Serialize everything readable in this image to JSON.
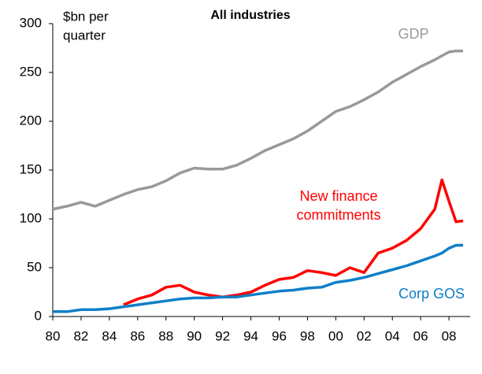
{
  "chart_data": {
    "type": "line",
    "title": "All industries",
    "ylabel": [
      "$bn per",
      "quarter"
    ],
    "x": [
      1980,
      1981,
      1982,
      1983,
      1984,
      1985,
      1986,
      1987,
      1988,
      1989,
      1990,
      1991,
      1992,
      1993,
      1994,
      1995,
      1996,
      1997,
      1998,
      1999,
      2000,
      2001,
      2002,
      2003,
      2004,
      2005,
      2006,
      2007,
      2007.5,
      2008,
      2008.5,
      2009
    ],
    "series": [
      {
        "name": [
          "GDP"
        ],
        "color": "#999999",
        "values": [
          110,
          113,
          117,
          113,
          119,
          125,
          130,
          133,
          139,
          147,
          152,
          151,
          151,
          155,
          162,
          170,
          176,
          182,
          190,
          200,
          210,
          215,
          222,
          230,
          240,
          248,
          256,
          263,
          267,
          271,
          272,
          272
        ]
      },
      {
        "name": [
          "New finance",
          "commitments"
        ],
        "color": "#ff0000",
        "values": [
          null,
          null,
          null,
          null,
          null,
          12,
          18,
          22,
          30,
          32,
          25,
          22,
          20,
          22,
          25,
          32,
          38,
          40,
          47,
          45,
          42,
          50,
          45,
          65,
          70,
          78,
          90,
          110,
          140,
          118,
          97,
          98
        ]
      },
      {
        "name": [
          "Corp GOS"
        ],
        "color": "#0f7fc8",
        "values": [
          5,
          5,
          7,
          7,
          8,
          10,
          12,
          14,
          16,
          18,
          19,
          19,
          20,
          20,
          22,
          24,
          26,
          27,
          29,
          30,
          35,
          37,
          40,
          44,
          48,
          52,
          57,
          62,
          65,
          70,
          73,
          73
        ]
      }
    ],
    "xlim": [
      1980,
      2009.5
    ],
    "xticks": [
      {
        "value": 1980,
        "label": "80"
      },
      {
        "value": 1982,
        "label": "82"
      },
      {
        "value": 1984,
        "label": "84"
      },
      {
        "value": 1986,
        "label": "86"
      },
      {
        "value": 1988,
        "label": "88"
      },
      {
        "value": 1990,
        "label": "90"
      },
      {
        "value": 1992,
        "label": "92"
      },
      {
        "value": 1994,
        "label": "94"
      },
      {
        "value": 1996,
        "label": "96"
      },
      {
        "value": 1998,
        "label": "98"
      },
      {
        "value": 2000,
        "label": "00"
      },
      {
        "value": 2002,
        "label": "02"
      },
      {
        "value": 2004,
        "label": "04"
      },
      {
        "value": 2006,
        "label": "06"
      },
      {
        "value": 2008,
        "label": "08"
      }
    ],
    "ylim": [
      0,
      300
    ],
    "yticks": [
      0,
      50,
      100,
      150,
      200,
      250,
      300
    ],
    "grid": false
  }
}
